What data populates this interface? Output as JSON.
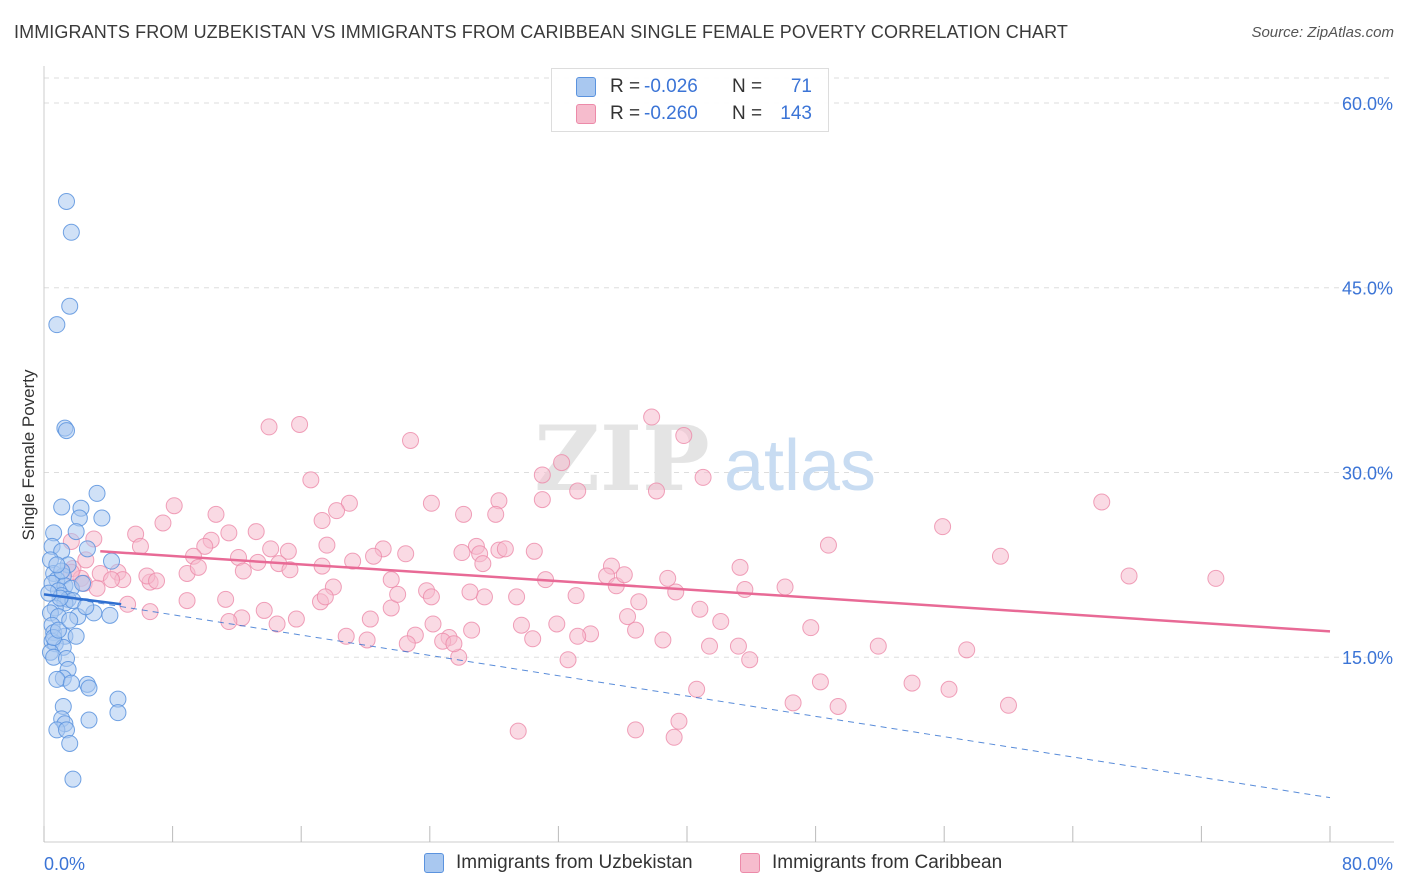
{
  "title": "IMMIGRANTS FROM UZBEKISTAN VS IMMIGRANTS FROM CARIBBEAN SINGLE FEMALE POVERTY CORRELATION CHART",
  "source": "Source: ZipAtlas.com",
  "watermark": {
    "zip": "ZIP",
    "atlas": "atlas"
  },
  "legend_top": [
    {
      "r_label": "R =",
      "r_value": "-0.026",
      "n_label": "N =",
      "n_value": "71"
    },
    {
      "r_label": "R =",
      "r_value": "-0.260",
      "n_label": "N =",
      "n_value": "143"
    }
  ],
  "legend_bottom": [
    "Immigrants from Uzbekistan",
    "Immigrants from Caribbean"
  ],
  "colors": {
    "uzbekistan_fill": "#a9c8f0",
    "uzbekistan_stroke": "#5b93de",
    "uzbekistan_line": "#2f6fd0",
    "caribbean_fill": "#f6bccd",
    "caribbean_stroke": "#ec8aa9",
    "caribbean_line": "#e86a96",
    "tick_label": "#3b74d6",
    "grid": "#dddddd"
  },
  "chart_data": {
    "type": "scatter",
    "title": "IMMIGRANTS FROM UZBEKISTAN VS IMMIGRANTS FROM CARIBBEAN SINGLE FEMALE POVERTY CORRELATION CHART",
    "xlabel": "",
    "ylabel": "Single Female Poverty",
    "xlim": [
      0,
      80
    ],
    "ylim": [
      0,
      63
    ],
    "x_tick_labels": [
      "0.0%",
      "80.0%"
    ],
    "y_ticks": [
      15,
      30,
      45,
      60
    ],
    "y_tick_labels": [
      "15.0%",
      "30.0%",
      "45.0%",
      "60.0%"
    ],
    "legend_position": "top-center",
    "series": [
      {
        "name": "Immigrants from Uzbekistan",
        "R": -0.026,
        "N": 71,
        "trend": {
          "x": [
            0.0,
            4.8
          ],
          "y": [
            20.1,
            19.3
          ],
          "style": "solid"
        },
        "trend_extended": {
          "x": [
            0.0,
            80.0
          ],
          "y": [
            20.1,
            3.6
          ],
          "style": "dashed"
        },
        "points": [
          [
            1.4,
            52.0
          ],
          [
            1.7,
            49.5
          ],
          [
            1.6,
            43.5
          ],
          [
            0.8,
            42.0
          ],
          [
            1.3,
            33.6
          ],
          [
            1.4,
            33.4
          ],
          [
            3.3,
            28.3
          ],
          [
            2.3,
            27.1
          ],
          [
            1.1,
            27.2
          ],
          [
            3.6,
            26.3
          ],
          [
            2.2,
            26.3
          ],
          [
            0.6,
            25.1
          ],
          [
            2.0,
            25.2
          ],
          [
            0.5,
            24.0
          ],
          [
            1.1,
            23.6
          ],
          [
            2.7,
            23.8
          ],
          [
            0.4,
            22.9
          ],
          [
            1.5,
            22.5
          ],
          [
            4.2,
            22.8
          ],
          [
            0.6,
            21.8
          ],
          [
            1.2,
            21.6
          ],
          [
            0.8,
            21.3
          ],
          [
            0.5,
            21.0
          ],
          [
            1.3,
            20.8
          ],
          [
            1.7,
            20.6
          ],
          [
            0.9,
            20.4
          ],
          [
            1.1,
            20.0
          ],
          [
            1.5,
            19.7
          ],
          [
            1.3,
            19.4
          ],
          [
            0.7,
            19.0
          ],
          [
            2.1,
            18.3
          ],
          [
            3.1,
            18.6
          ],
          [
            0.4,
            18.6
          ],
          [
            0.9,
            18.3
          ],
          [
            4.1,
            18.4
          ],
          [
            0.5,
            17.6
          ],
          [
            0.6,
            17.0
          ],
          [
            1.3,
            16.7
          ],
          [
            2.0,
            16.7
          ],
          [
            0.5,
            16.3
          ],
          [
            0.7,
            16.1
          ],
          [
            1.2,
            15.8
          ],
          [
            0.4,
            15.4
          ],
          [
            0.6,
            15.0
          ],
          [
            1.4,
            14.9
          ],
          [
            1.5,
            14.0
          ],
          [
            1.2,
            13.3
          ],
          [
            0.8,
            13.2
          ],
          [
            1.7,
            12.9
          ],
          [
            2.7,
            12.8
          ],
          [
            2.8,
            12.5
          ],
          [
            4.6,
            11.6
          ],
          [
            1.2,
            11.0
          ],
          [
            4.6,
            10.5
          ],
          [
            1.1,
            10.0
          ],
          [
            2.8,
            9.9
          ],
          [
            1.3,
            9.6
          ],
          [
            0.8,
            9.1
          ],
          [
            1.4,
            9.1
          ],
          [
            1.6,
            8.0
          ],
          [
            1.8,
            5.1
          ],
          [
            0.6,
            16.6
          ],
          [
            1.1,
            22.0
          ],
          [
            0.8,
            22.5
          ],
          [
            1.8,
            19.6
          ],
          [
            2.4,
            21.0
          ],
          [
            1.0,
            19.8
          ],
          [
            0.3,
            20.2
          ],
          [
            0.9,
            17.2
          ],
          [
            1.6,
            18.0
          ],
          [
            2.6,
            19.1
          ]
        ]
      },
      {
        "name": "Immigrants from Caribbean",
        "R": -0.26,
        "N": 143,
        "trend": {
          "x": [
            3.5,
            80.0
          ],
          "y": [
            23.6,
            17.1
          ],
          "style": "solid"
        },
        "points": [
          [
            37.8,
            34.5
          ],
          [
            14.0,
            33.7
          ],
          [
            15.9,
            33.9
          ],
          [
            22.8,
            32.6
          ],
          [
            39.8,
            33.0
          ],
          [
            32.2,
            30.8
          ],
          [
            31.0,
            29.8
          ],
          [
            41.0,
            29.6
          ],
          [
            16.6,
            29.4
          ],
          [
            38.1,
            28.5
          ],
          [
            33.2,
            28.5
          ],
          [
            28.3,
            27.7
          ],
          [
            31.0,
            27.8
          ],
          [
            24.1,
            27.5
          ],
          [
            19.0,
            27.5
          ],
          [
            65.8,
            27.6
          ],
          [
            8.1,
            27.3
          ],
          [
            18.2,
            26.9
          ],
          [
            10.7,
            26.6
          ],
          [
            26.1,
            26.6
          ],
          [
            28.1,
            26.6
          ],
          [
            17.3,
            26.1
          ],
          [
            7.4,
            25.9
          ],
          [
            55.9,
            25.6
          ],
          [
            5.7,
            25.0
          ],
          [
            13.2,
            25.2
          ],
          [
            11.5,
            25.1
          ],
          [
            1.7,
            24.4
          ],
          [
            3.1,
            24.6
          ],
          [
            10.4,
            24.5
          ],
          [
            6.0,
            24.0
          ],
          [
            10.0,
            24.0
          ],
          [
            17.6,
            24.1
          ],
          [
            21.1,
            23.8
          ],
          [
            26.9,
            24.0
          ],
          [
            28.3,
            23.7
          ],
          [
            28.7,
            23.8
          ],
          [
            27.1,
            23.4
          ],
          [
            48.8,
            24.1
          ],
          [
            15.2,
            23.6
          ],
          [
            14.1,
            23.8
          ],
          [
            9.3,
            23.2
          ],
          [
            12.1,
            23.1
          ],
          [
            14.6,
            22.6
          ],
          [
            17.3,
            22.4
          ],
          [
            15.3,
            22.1
          ],
          [
            20.5,
            23.2
          ],
          [
            26.0,
            23.5
          ],
          [
            27.3,
            22.6
          ],
          [
            35.3,
            22.4
          ],
          [
            43.3,
            22.3
          ],
          [
            67.5,
            21.6
          ],
          [
            72.9,
            21.4
          ],
          [
            59.5,
            23.2
          ],
          [
            3.5,
            21.8
          ],
          [
            4.6,
            21.9
          ],
          [
            4.9,
            21.3
          ],
          [
            6.6,
            21.1
          ],
          [
            6.4,
            21.6
          ],
          [
            8.9,
            21.8
          ],
          [
            12.4,
            22.0
          ],
          [
            1.8,
            22.2
          ],
          [
            2.3,
            21.4
          ],
          [
            21.6,
            21.3
          ],
          [
            31.2,
            21.3
          ],
          [
            35.0,
            21.6
          ],
          [
            38.8,
            21.4
          ],
          [
            46.1,
            20.7
          ],
          [
            18.0,
            20.7
          ],
          [
            23.8,
            20.4
          ],
          [
            24.1,
            19.9
          ],
          [
            35.6,
            20.8
          ],
          [
            39.3,
            20.3
          ],
          [
            11.3,
            19.7
          ],
          [
            17.2,
            19.5
          ],
          [
            21.6,
            19.0
          ],
          [
            29.4,
            19.9
          ],
          [
            33.1,
            20.0
          ],
          [
            22.0,
            20.1
          ],
          [
            40.8,
            18.9
          ],
          [
            13.7,
            18.8
          ],
          [
            6.6,
            18.7
          ],
          [
            36.3,
            18.3
          ],
          [
            20.3,
            18.1
          ],
          [
            15.7,
            18.1
          ],
          [
            12.3,
            18.2
          ],
          [
            14.5,
            17.7
          ],
          [
            24.2,
            17.7
          ],
          [
            42.1,
            17.9
          ],
          [
            11.5,
            17.9
          ],
          [
            47.7,
            17.4
          ],
          [
            36.8,
            17.2
          ],
          [
            29.7,
            17.6
          ],
          [
            26.6,
            17.2
          ],
          [
            34.0,
            16.9
          ],
          [
            25.2,
            16.6
          ],
          [
            23.1,
            16.8
          ],
          [
            33.2,
            16.7
          ],
          [
            22.6,
            16.1
          ],
          [
            20.1,
            16.4
          ],
          [
            30.4,
            16.5
          ],
          [
            24.8,
            16.3
          ],
          [
            38.5,
            16.4
          ],
          [
            43.2,
            15.9
          ],
          [
            51.9,
            15.9
          ],
          [
            57.4,
            15.6
          ],
          [
            41.4,
            15.9
          ],
          [
            18.8,
            16.7
          ],
          [
            25.8,
            15.0
          ],
          [
            32.6,
            14.8
          ],
          [
            43.9,
            14.8
          ],
          [
            48.3,
            13.0
          ],
          [
            54.0,
            12.9
          ],
          [
            40.6,
            12.4
          ],
          [
            56.3,
            12.4
          ],
          [
            46.6,
            11.3
          ],
          [
            49.4,
            11.0
          ],
          [
            60.0,
            11.1
          ],
          [
            39.5,
            9.8
          ],
          [
            39.2,
            8.5
          ],
          [
            36.8,
            9.1
          ],
          [
            29.5,
            9.0
          ],
          [
            2.5,
            21.0
          ],
          [
            5.2,
            19.3
          ],
          [
            3.3,
            20.6
          ],
          [
            7.0,
            21.2
          ],
          [
            8.9,
            19.6
          ],
          [
            9.6,
            22.3
          ],
          [
            4.2,
            21.3
          ],
          [
            2.6,
            22.9
          ],
          [
            1.7,
            21.9
          ],
          [
            27.4,
            19.9
          ],
          [
            26.5,
            20.3
          ],
          [
            19.2,
            22.8
          ],
          [
            13.3,
            22.7
          ],
          [
            22.5,
            23.4
          ],
          [
            30.5,
            23.6
          ],
          [
            36.1,
            21.7
          ],
          [
            43.6,
            20.5
          ],
          [
            37.0,
            19.5
          ],
          [
            31.9,
            17.7
          ],
          [
            25.5,
            16.1
          ],
          [
            17.5,
            19.9
          ]
        ]
      }
    ]
  }
}
